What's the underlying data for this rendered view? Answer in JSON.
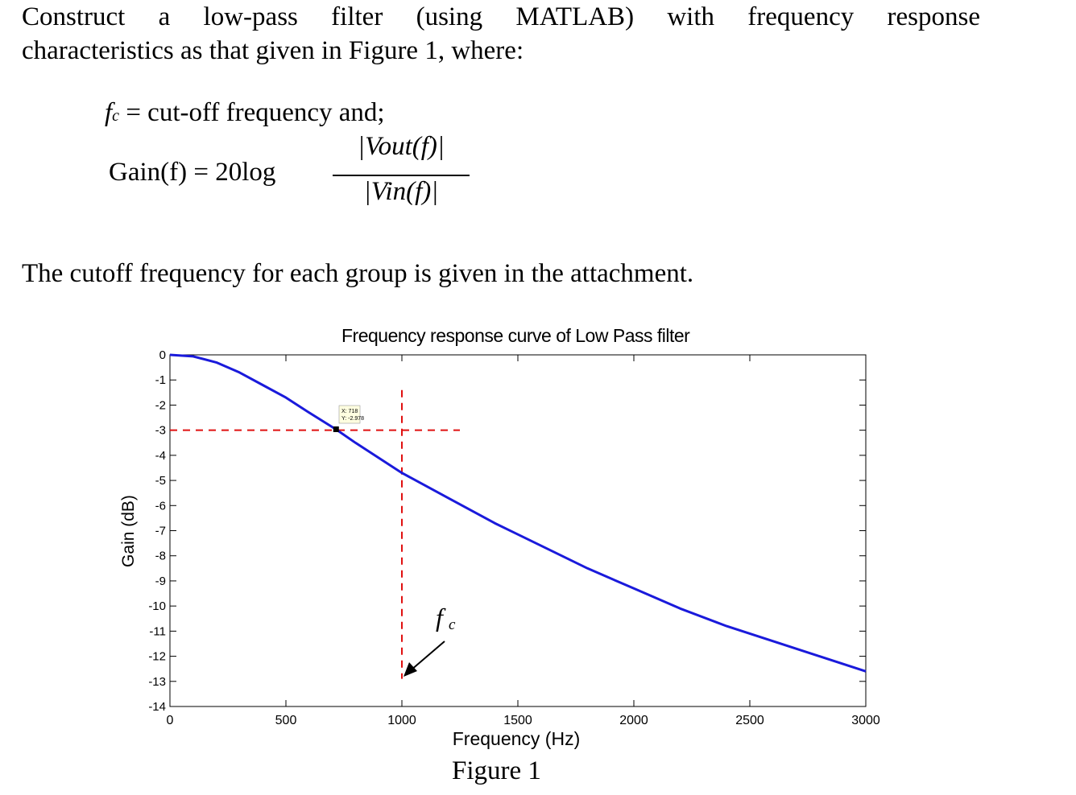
{
  "problem": {
    "intro_line1": "Construct a low-pass filter (using MATLAB) with frequency response",
    "intro_line2": "characteristics as that given in Figure 1, where:",
    "fc_symbol": "f",
    "fc_subscript": "c",
    "fc_definition": "= cut-off frequency and;",
    "gain_lhs": "Gain(f) = 20log",
    "gain_numerator": "|Vout(f)|",
    "gain_denominator": "|Vin(f)|",
    "cutoff_note": "The cutoff frequency for each group is given in the attachment."
  },
  "figure": {
    "caption": "Figure 1",
    "fc_annotation": "f",
    "fc_annotation_sub": "c"
  },
  "chart_data": {
    "type": "line",
    "title": "Frequency response curve of Low Pass filter",
    "xlabel": "Frequency (Hz)",
    "ylabel": "Gain (dB)",
    "xlim": [
      0,
      3000
    ],
    "ylim": [
      -14,
      0
    ],
    "xticks": [
      0,
      500,
      1000,
      1500,
      2000,
      2500,
      3000
    ],
    "yticks": [
      0,
      -1,
      -2,
      -3,
      -4,
      -5,
      -6,
      -7,
      -8,
      -9,
      -10,
      -11,
      -12,
      -13,
      -14
    ],
    "grid": false,
    "series": [
      {
        "color": "#1a1adb",
        "x": [
          0,
          100,
          200,
          300,
          400,
          500,
          600,
          718,
          800,
          900,
          1000,
          1200,
          1400,
          1600,
          1800,
          2000,
          2200,
          2400,
          2600,
          2800,
          3000
        ],
        "y": [
          0,
          -0.06,
          -0.3,
          -0.7,
          -1.2,
          -1.7,
          -2.3,
          -2.978,
          -3.5,
          -4.1,
          -4.7,
          -5.7,
          -6.7,
          -7.6,
          -8.5,
          -9.3,
          -10.1,
          -10.8,
          -11.4,
          -12.0,
          -12.6
        ]
      }
    ],
    "datatip": {
      "x": 718,
      "y": -2.978,
      "x_text": "X: 718",
      "y_text": "Y: -2.978"
    },
    "reference_lines": {
      "horizontal_y": -3,
      "vertical_x": 1000,
      "color": "#e01010"
    }
  }
}
